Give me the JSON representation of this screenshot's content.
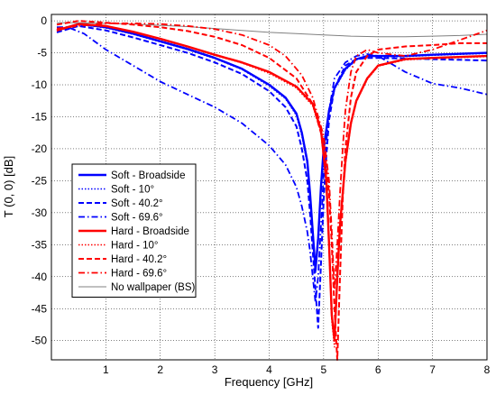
{
  "chart_data": {
    "type": "line",
    "xlabel": "Frequency [GHz]",
    "ylabel": "T (0, 0) [dB]",
    "xlim": [
      0,
      8
    ],
    "ylim": [
      -53,
      1
    ],
    "xticks": [
      1,
      2,
      3,
      4,
      5,
      6,
      7,
      8
    ],
    "yticks": [
      0,
      -5,
      -10,
      -15,
      -20,
      -25,
      -30,
      -35,
      -40,
      -45,
      -50
    ],
    "grid": true,
    "legend_position": "lower-left",
    "series": [
      {
        "name": "Soft - Broadside",
        "color": "#0000ff",
        "dash": "solid",
        "width": 2.4,
        "x": [
          0.1,
          0.5,
          1.0,
          1.5,
          2.0,
          2.5,
          3.0,
          3.5,
          4.0,
          4.3,
          4.5,
          4.6,
          4.7,
          4.75,
          4.8,
          4.85,
          4.9,
          4.95,
          5.0,
          5.1,
          5.2,
          5.4,
          5.6,
          5.8,
          6.0,
          6.5,
          7.0,
          8.0
        ],
        "y": [
          -1.5,
          -0.5,
          -1.0,
          -2.0,
          -3.2,
          -4.4,
          -5.8,
          -7.5,
          -10.0,
          -12.0,
          -14.5,
          -17.5,
          -22.0,
          -27.0,
          -33.0,
          -39.0,
          -34.0,
          -26.0,
          -20.0,
          -14.0,
          -10.5,
          -7.5,
          -6.0,
          -5.5,
          -5.5,
          -5.5,
          -5.3,
          -5.0
        ]
      },
      {
        "name": "Soft - 10°",
        "color": "#0000ff",
        "dash": "dot",
        "width": 1.4,
        "x": [
          0.1,
          0.5,
          1.0,
          1.5,
          2.0,
          2.5,
          3.0,
          3.5,
          4.0,
          4.3,
          4.5,
          4.6,
          4.7,
          4.75,
          4.8,
          4.85,
          4.9,
          4.95,
          5.0,
          5.1,
          5.2,
          5.4,
          5.6,
          5.8,
          6.0,
          6.5,
          7.0,
          8.0
        ],
        "y": [
          -1.6,
          -0.6,
          -1.1,
          -2.1,
          -3.3,
          -4.5,
          -5.9,
          -7.6,
          -10.2,
          -12.2,
          -14.8,
          -18.0,
          -22.5,
          -27.5,
          -33.5,
          -39.5,
          -34.5,
          -26.5,
          -20.5,
          -14.3,
          -10.7,
          -7.7,
          -6.1,
          -5.6,
          -5.6,
          -5.6,
          -5.4,
          -5.1
        ]
      },
      {
        "name": "Soft - 40.2°",
        "color": "#0000ff",
        "dash": "dash",
        "width": 2.0,
        "x": [
          0.1,
          0.5,
          1.0,
          1.5,
          2.0,
          2.5,
          3.0,
          3.5,
          4.0,
          4.3,
          4.5,
          4.6,
          4.7,
          4.75,
          4.8,
          4.85,
          4.9,
          4.95,
          5.0,
          5.05,
          5.1,
          5.2,
          5.4,
          5.6,
          5.8,
          6.0,
          6.5,
          7.0,
          8.0
        ],
        "y": [
          -1.8,
          -0.8,
          -1.5,
          -2.6,
          -3.8,
          -5.0,
          -6.5,
          -8.3,
          -11.0,
          -13.5,
          -16.5,
          -20.0,
          -25.0,
          -30.0,
          -36.0,
          -42.0,
          -48.0,
          -38.0,
          -28.0,
          -21.0,
          -15.5,
          -10.5,
          -7.0,
          -6.0,
          -5.8,
          -5.8,
          -5.9,
          -6.0,
          -6.2
        ]
      },
      {
        "name": "Soft - 69.6°",
        "color": "#0000ff",
        "dash": "dashdot",
        "width": 1.8,
        "x": [
          0.1,
          0.3,
          0.6,
          1.0,
          1.5,
          2.0,
          2.5,
          3.0,
          3.5,
          4.0,
          4.3,
          4.5,
          4.6,
          4.7,
          4.75,
          4.8,
          4.85,
          4.9,
          4.95,
          5.0,
          5.1,
          5.2,
          5.4,
          5.6,
          5.8,
          6.0,
          6.2,
          6.5,
          7.0,
          7.5,
          8.0
        ],
        "y": [
          -1.0,
          -1.0,
          -2.0,
          -4.5,
          -7.0,
          -9.5,
          -11.5,
          -13.5,
          -16.0,
          -19.5,
          -22.5,
          -26.0,
          -29.0,
          -33.0,
          -36.0,
          -40.0,
          -44.0,
          -40.0,
          -32.0,
          -24.0,
          -14.0,
          -9.0,
          -6.5,
          -5.5,
          -5.2,
          -5.5,
          -6.5,
          -8.0,
          -9.8,
          -10.5,
          -11.5
        ]
      },
      {
        "name": "Hard - Broadside",
        "color": "#ff0000",
        "dash": "solid",
        "width": 2.4,
        "x": [
          0.1,
          0.5,
          1.0,
          1.5,
          2.0,
          2.5,
          3.0,
          3.5,
          4.0,
          4.5,
          4.8,
          4.95,
          5.05,
          5.1,
          5.15,
          5.2,
          5.25,
          5.3,
          5.35,
          5.4,
          5.5,
          5.6,
          5.8,
          6.0,
          6.5,
          7.0,
          8.0
        ],
        "y": [
          -1.5,
          -0.5,
          -0.8,
          -1.7,
          -2.8,
          -4.0,
          -5.3,
          -6.5,
          -8.0,
          -10.3,
          -13.0,
          -17.0,
          -25.0,
          -35.0,
          -46.0,
          -50.0,
          -40.0,
          -32.0,
          -27.0,
          -22.0,
          -16.0,
          -12.5,
          -9.0,
          -7.0,
          -6.0,
          -5.8,
          -5.5
        ]
      },
      {
        "name": "Hard - 10°",
        "color": "#ff0000",
        "dash": "dot",
        "width": 1.4,
        "x": [
          0.1,
          0.5,
          1.0,
          1.5,
          2.0,
          2.5,
          3.0,
          3.5,
          4.0,
          4.5,
          4.8,
          4.95,
          5.05,
          5.1,
          5.15,
          5.2,
          5.25,
          5.3,
          5.35,
          5.4,
          5.5,
          5.6,
          5.8,
          6.0,
          6.5,
          7.0,
          8.0
        ],
        "y": [
          -1.6,
          -0.6,
          -0.9,
          -1.8,
          -2.9,
          -4.1,
          -5.4,
          -6.6,
          -8.2,
          -10.5,
          -13.3,
          -17.5,
          -26.0,
          -36.0,
          -47.0,
          -51.0,
          -41.0,
          -32.5,
          -27.5,
          -22.5,
          -16.3,
          -12.7,
          -9.2,
          -7.1,
          -6.1,
          -5.9,
          -5.6
        ]
      },
      {
        "name": "Hard - 40.2°",
        "color": "#ff0000",
        "dash": "dash",
        "width": 2.0,
        "x": [
          0.1,
          0.5,
          1.0,
          1.5,
          2.0,
          2.5,
          3.0,
          3.5,
          4.0,
          4.5,
          4.8,
          5.0,
          5.1,
          5.15,
          5.2,
          5.25,
          5.3,
          5.35,
          5.4,
          5.5,
          5.6,
          5.8,
          6.0,
          6.5,
          7.0,
          7.5,
          8.0
        ],
        "y": [
          -0.6,
          0.0,
          -0.3,
          -0.6,
          -1.0,
          -1.6,
          -2.5,
          -3.8,
          -5.8,
          -9.0,
          -13.0,
          -19.0,
          -27.0,
          -35.0,
          -45.0,
          -53.0,
          -40.0,
          -28.0,
          -20.0,
          -12.0,
          -8.0,
          -5.5,
          -4.5,
          -4.0,
          -3.8,
          -3.5,
          -3.5
        ]
      },
      {
        "name": "Hard - 69.6°",
        "color": "#ff0000",
        "dash": "dashdot",
        "width": 1.8,
        "x": [
          0.1,
          0.5,
          1.0,
          1.5,
          2.0,
          2.5,
          3.0,
          3.5,
          4.0,
          4.3,
          4.6,
          4.8,
          5.0,
          5.1,
          5.15,
          5.2,
          5.25,
          5.3,
          5.35,
          5.4,
          5.5,
          5.6,
          5.8,
          6.0,
          6.5,
          7.0,
          7.5,
          8.0
        ],
        "y": [
          -1.2,
          -0.8,
          -0.4,
          -0.4,
          -0.5,
          -0.8,
          -1.3,
          -2.2,
          -3.8,
          -5.5,
          -8.5,
          -12.0,
          -18.0,
          -25.0,
          -33.0,
          -42.0,
          -35.0,
          -27.0,
          -20.0,
          -14.0,
          -8.0,
          -5.5,
          -4.5,
          -5.0,
          -5.5,
          -4.5,
          -3.0,
          -1.5
        ]
      },
      {
        "name": "No wallpaper (BS)",
        "color": "#808080",
        "dash": "solid",
        "width": 1.0,
        "x": [
          0.1,
          0.5,
          1.0,
          1.5,
          2.0,
          2.5,
          3.0,
          3.5,
          4.0,
          4.5,
          5.0,
          5.5,
          6.0,
          6.5,
          7.0,
          7.5,
          8.0
        ],
        "y": [
          -0.3,
          -0.3,
          -0.4,
          -0.5,
          -0.7,
          -0.9,
          -1.2,
          -1.5,
          -1.8,
          -2.0,
          -2.2,
          -2.4,
          -2.5,
          -2.5,
          -2.4,
          -2.3,
          -2.1
        ]
      }
    ]
  }
}
